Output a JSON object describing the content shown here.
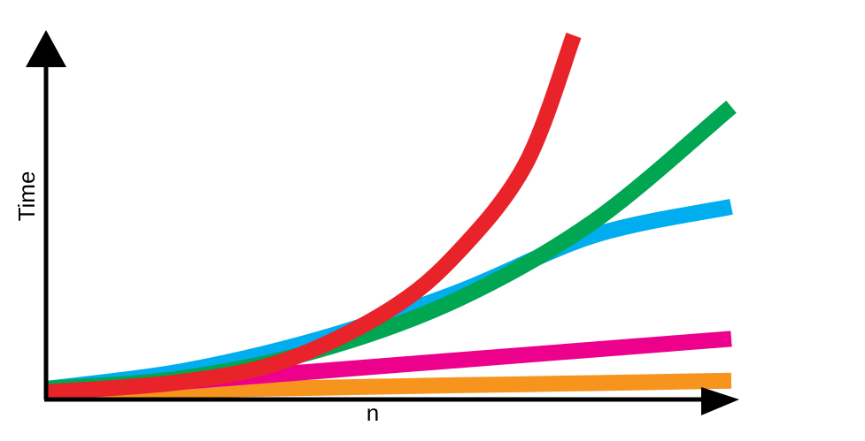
{
  "chart_data": {
    "type": "line",
    "title": "",
    "xlabel": "n",
    "ylabel": "Time",
    "grid": false,
    "legend": "none",
    "axis_color": "#000000",
    "xlim": [
      0,
      100
    ],
    "ylim": [
      0,
      100
    ],
    "series": [
      {
        "color": "#e8232a",
        "x": [
          0,
          20,
          35,
          50,
          60,
          70,
          77
        ],
        "y": [
          0,
          3,
          9,
          23,
          39,
          64,
          100
        ]
      },
      {
        "color": "#00a651",
        "x": [
          0,
          20,
          40,
          60,
          80,
          100
        ],
        "y": [
          1,
          4,
          12,
          26,
          48,
          80
        ]
      },
      {
        "color": "#00adef",
        "x": [
          0,
          20,
          40,
          60,
          80,
          100
        ],
        "y": [
          1,
          6,
          15,
          28,
          44,
          52
        ]
      },
      {
        "color": "#ec008c",
        "x": [
          0,
          20,
          40,
          60,
          80,
          100
        ],
        "y": [
          0,
          3,
          6,
          9,
          12,
          15
        ]
      },
      {
        "color": "#f7941d",
        "x": [
          0,
          20,
          40,
          60,
          80,
          100
        ],
        "y": [
          0,
          0.7,
          1.3,
          2,
          2.6,
          3.3
        ]
      }
    ]
  }
}
